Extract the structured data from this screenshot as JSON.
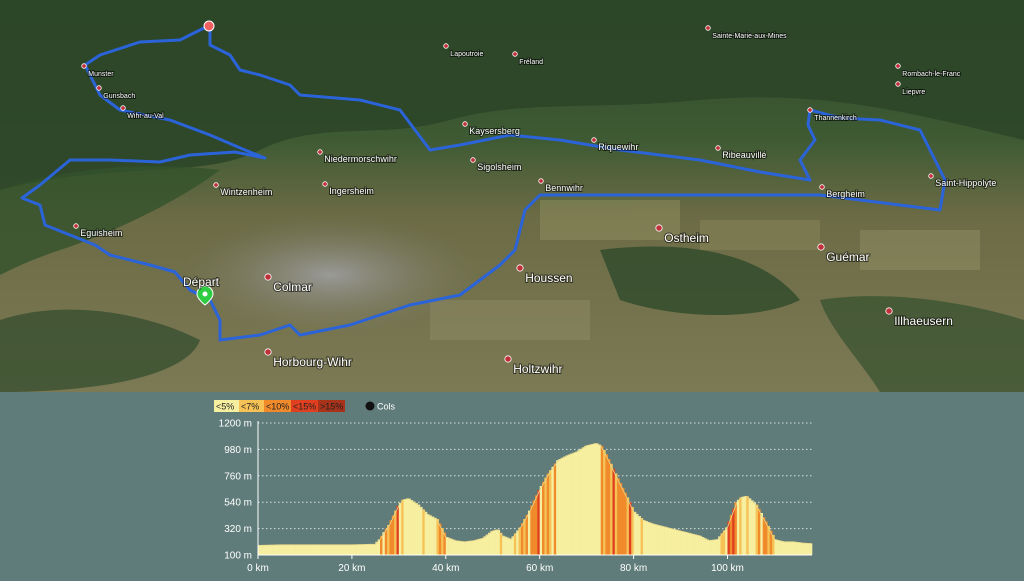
{
  "map": {
    "route_color": "#2b63d9",
    "start_label": "Départ",
    "places": [
      {
        "name": "Munster",
        "size": "small"
      },
      {
        "name": "Gunsbach",
        "size": "small"
      },
      {
        "name": "Wihr-au-Val",
        "size": "small"
      },
      {
        "name": "Lapoutroie",
        "size": "small"
      },
      {
        "name": "Fréland",
        "size": "small"
      },
      {
        "name": "Sainte-Marie-aux-Mines",
        "size": "small"
      },
      {
        "name": "Rombach-le-Franc",
        "size": "small"
      },
      {
        "name": "Liepvre",
        "size": "small"
      },
      {
        "name": "Thannenkirch",
        "size": "small"
      },
      {
        "name": "Kaysersberg",
        "size": "medium"
      },
      {
        "name": "Niedermorschwihr",
        "size": "medium"
      },
      {
        "name": "Sigolsheim",
        "size": "medium"
      },
      {
        "name": "Riquewihr",
        "size": "medium"
      },
      {
        "name": "Ribeauvillé",
        "size": "medium"
      },
      {
        "name": "Wintzenheim",
        "size": "medium"
      },
      {
        "name": "Ingersheim",
        "size": "medium"
      },
      {
        "name": "Bennwihr",
        "size": "medium"
      },
      {
        "name": "Bergheim",
        "size": "medium"
      },
      {
        "name": "Saint-Hippolyte",
        "size": "medium"
      },
      {
        "name": "Eguisheim",
        "size": "medium"
      },
      {
        "name": "Ostheim",
        "size": "large"
      },
      {
        "name": "Guémar",
        "size": "large"
      },
      {
        "name": "Colmar",
        "size": "large"
      },
      {
        "name": "Houssen",
        "size": "large"
      },
      {
        "name": "Illhaeusern",
        "size": "large"
      },
      {
        "name": "Horbourg-Wihr",
        "size": "large"
      },
      {
        "name": "Holtzwihr",
        "size": "large"
      }
    ]
  },
  "profile": {
    "legend": {
      "grades": [
        {
          "label": "<5%",
          "color": "#f7efa0"
        },
        {
          "label": "<7%",
          "color": "#f6c255"
        },
        {
          "label": "<10%",
          "color": "#f08a2a"
        },
        {
          "label": "<15%",
          "color": "#e04020"
        },
        {
          "label": ">15%",
          "color": "#a8321a"
        }
      ],
      "cols_label": "Cols"
    }
  },
  "chart_data": {
    "type": "area",
    "title": "",
    "xlabel": "",
    "ylabel": "",
    "x_unit": "km",
    "y_unit": "m",
    "xlim": [
      0,
      118
    ],
    "ylim": [
      100,
      1200
    ],
    "x_ticks": [
      "0 km",
      "20 km",
      "40 km",
      "60 km",
      "80 km",
      "100 km"
    ],
    "y_ticks": [
      "1200 m",
      "980 m",
      "760 m",
      "540 m",
      "320 m",
      "100 m"
    ],
    "x": [
      0,
      5,
      10,
      15,
      20,
      25,
      26,
      28,
      30,
      31,
      32,
      34,
      36,
      38,
      40,
      42,
      44,
      46,
      48,
      50,
      51,
      52,
      54,
      56,
      58,
      60,
      62,
      64,
      66,
      68,
      70,
      72,
      73,
      74,
      76,
      78,
      80,
      82,
      84,
      86,
      88,
      90,
      92,
      94,
      96,
      98,
      100,
      102,
      103,
      104,
      106,
      108,
      110,
      112,
      114,
      116,
      118
    ],
    "y": [
      180,
      185,
      185,
      185,
      185,
      190,
      230,
      350,
      510,
      560,
      570,
      520,
      440,
      400,
      250,
      220,
      210,
      220,
      240,
      300,
      310,
      260,
      230,
      330,
      470,
      640,
      780,
      890,
      930,
      960,
      1010,
      1030,
      1010,
      940,
      780,
      620,
      460,
      390,
      360,
      340,
      320,
      300,
      280,
      260,
      220,
      230,
      330,
      540,
      580,
      590,
      520,
      380,
      230,
      210,
      210,
      200,
      195
    ],
    "grid": true
  }
}
